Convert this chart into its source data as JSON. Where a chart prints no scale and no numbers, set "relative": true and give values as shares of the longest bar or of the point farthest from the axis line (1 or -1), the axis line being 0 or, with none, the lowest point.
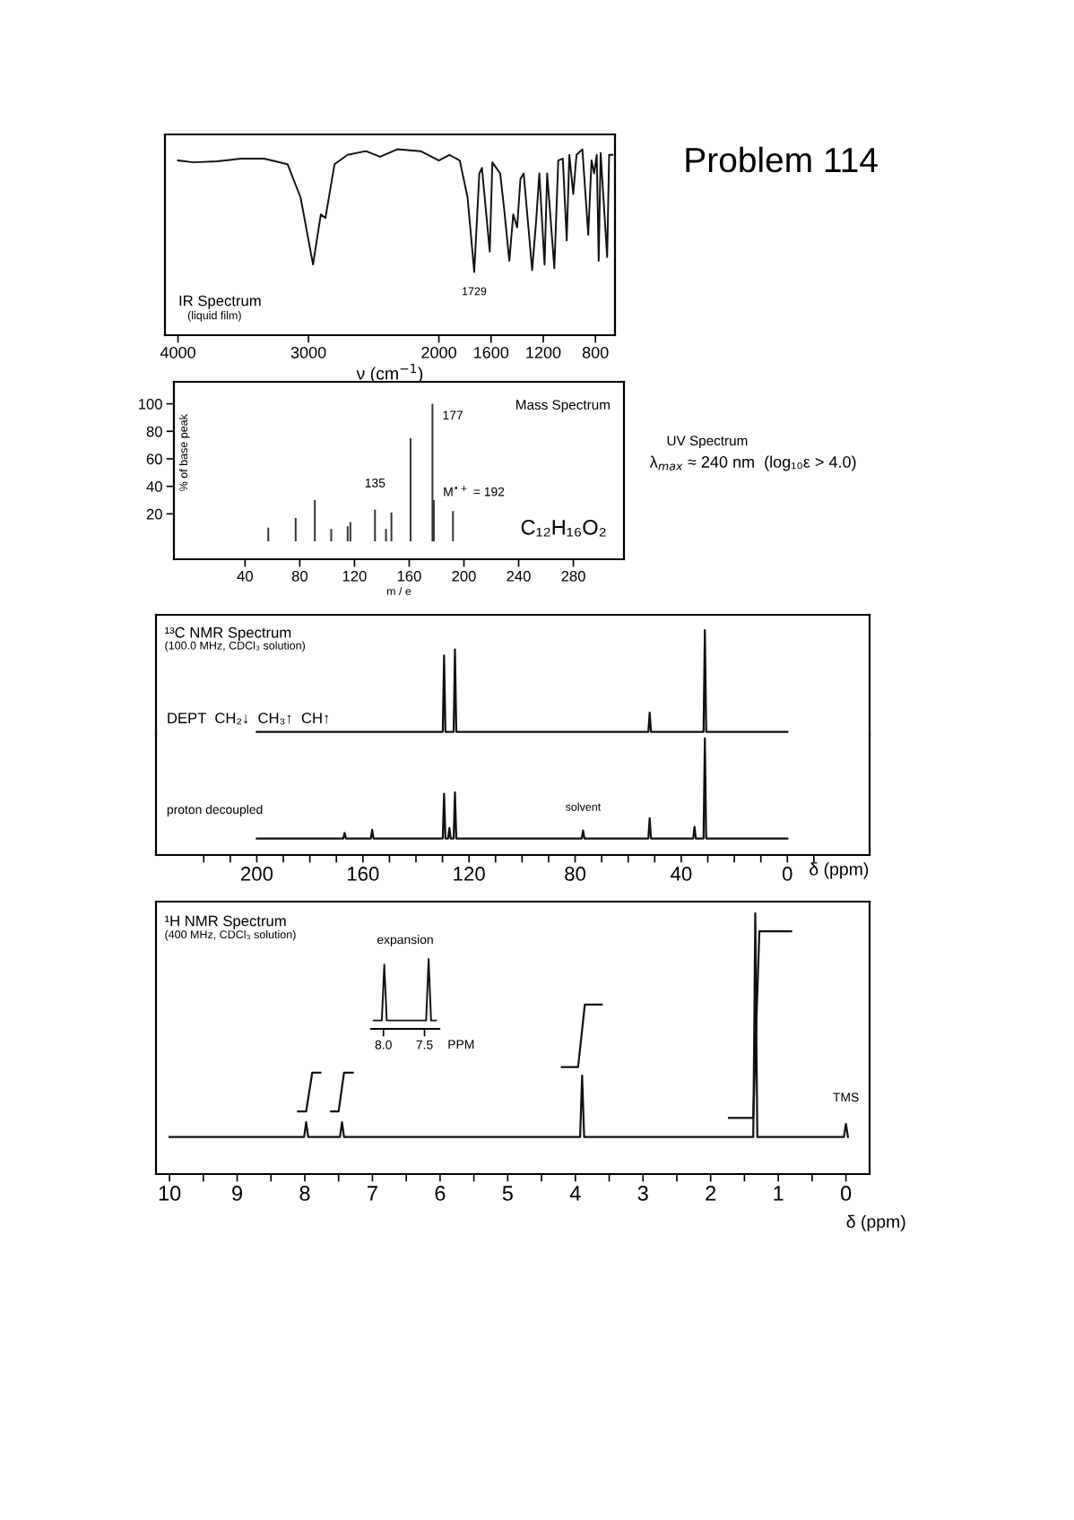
{
  "chart_data": [
    {
      "type": "line",
      "relative": true,
      "title": "IR Spectrum",
      "subtitle": "(liquid film)",
      "xlabel": "ν (cm$^{−1}$)",
      "xlim": [
        4100,
        650
      ],
      "xticks": [
        4000,
        3000,
        2000,
        1600,
        1200,
        800
      ],
      "color": "#111111",
      "x": [
        4000,
        3880,
        3700,
        3520,
        3340,
        3160,
        3060,
        2965,
        2905,
        2870,
        2800,
        2700,
        2560,
        2450,
        2320,
        2140,
        2000,
        1920,
        1840,
        1780,
        1729,
        1690,
        1670,
        1610,
        1590,
        1560,
        1530,
        1500,
        1460,
        1430,
        1400,
        1375,
        1350,
        1285,
        1255,
        1230,
        1190,
        1170,
        1115,
        1085,
        1050,
        1020,
        1000,
        970,
        945,
        900,
        855,
        830,
        810,
        790,
        775,
        760,
        710,
        695,
        670
      ],
      "values": [
        0.94,
        0.93,
        0.935,
        0.95,
        0.95,
        0.92,
        0.74,
        0.38,
        0.65,
        0.63,
        0.92,
        0.97,
        0.99,
        0.96,
        1.0,
        0.99,
        0.94,
        0.97,
        0.94,
        0.74,
        0.34,
        0.87,
        0.9,
        0.45,
        0.93,
        0.9,
        0.87,
        0.68,
        0.4,
        0.65,
        0.58,
        0.84,
        0.87,
        0.35,
        0.61,
        0.87,
        0.38,
        0.87,
        0.36,
        0.94,
        0.95,
        0.51,
        0.97,
        0.76,
        0.97,
        1.0,
        0.54,
        0.94,
        0.87,
        0.97,
        0.4,
        0.98,
        0.42,
        0.97,
        0.97
      ],
      "annotations": [
        {
          "text": "1729",
          "x": 1729,
          "y": 0.34
        }
      ]
    },
    {
      "type": "other",
      "title": "Problem 114",
      "annotations": [
        "UV Spectrum",
        "λ$_{max}$ ≈ 240 nm  (log₁₀ε > 4.0)"
      ]
    },
    {
      "type": "bar",
      "title": "Mass Spectrum",
      "xlabel": "m / e",
      "ylabel": "% of base peak",
      "xlim": [
        -12,
        317
      ],
      "ylim": [
        -13,
        116
      ],
      "xticks": [
        40,
        80,
        120,
        160,
        200,
        240,
        280
      ],
      "yticks": [
        20,
        40,
        60,
        80,
        100
      ],
      "color": "#333333",
      "x": [
        57,
        77,
        91,
        103,
        115,
        117,
        135,
        143,
        147,
        161,
        177,
        178,
        192
      ],
      "values": [
        10,
        17,
        30,
        9,
        11,
        14,
        23,
        9,
        21,
        75,
        100,
        30,
        22
      ],
      "annotations": [
        {
          "text": "177",
          "x": 177,
          "y": 100
        },
        {
          "text": "135",
          "x": 135,
          "y": 23
        },
        {
          "text": "M$^{•+}$ = 192",
          "x": 192,
          "y": 22
        },
        "C₁₂H₁₆O₂"
      ]
    },
    {
      "type": "line",
      "relative": true,
      "title": "¹³C NMR Spectrum",
      "subtitle": "(100.0 MHz, CDCl₃ solution)",
      "xlim": [
        238,
        -31
      ],
      "color": "#111111",
      "x": [
        200,
        129.9,
        129.4,
        128.9,
        125.8,
        125.3,
        124.8,
        52.4,
        51.9,
        51.4,
        31.6,
        31.1,
        30.6,
        0
      ],
      "values": [
        0,
        0,
        0.75,
        0,
        0,
        0.81,
        0,
        0,
        0.19,
        0,
        0,
        1.0,
        0,
        0
      ],
      "annotations": [
        "DEPT  CH₂↓  CH₃↑  CH↑"
      ]
    },
    {
      "type": "line",
      "relative": true,
      "xlabel": "δ (ppm)",
      "xlim": [
        238,
        -31
      ],
      "color": "#111111",
      "xticks": [
        {
          "value": 220,
          "label": null
        },
        {
          "value": 210,
          "label": null
        },
        200,
        {
          "value": 190,
          "label": null
        },
        {
          "value": 180,
          "label": null
        },
        {
          "value": 170,
          "label": null
        },
        160,
        {
          "value": 150,
          "label": null
        },
        {
          "value": 140,
          "label": null
        },
        {
          "value": 130,
          "label": null
        },
        120,
        {
          "value": 110,
          "label": null
        },
        {
          "value": 100,
          "label": null
        },
        {
          "value": 90,
          "label": null
        },
        80,
        {
          "value": 70,
          "label": null
        },
        {
          "value": 60,
          "label": null
        },
        {
          "value": 50,
          "label": null
        },
        40,
        {
          "value": 30,
          "label": null
        },
        {
          "value": 20,
          "label": null
        },
        {
          "value": 10,
          "label": null
        },
        0,
        {
          "value": -10,
          "label": null
        }
      ],
      "x": [
        200,
        167.4,
        166.9,
        166.4,
        157,
        156.5,
        156,
        129.9,
        129.4,
        128.9,
        127.9,
        127.4,
        126.9,
        125.8,
        125.3,
        124.8,
        77.5,
        77,
        76.5,
        52.4,
        51.9,
        51.4,
        35.5,
        35,
        34.5,
        31.6,
        31.1,
        30.6,
        0
      ],
      "values": [
        0.142,
        0.142,
        0.19,
        0.142,
        0.142,
        0.216,
        0.142,
        0.142,
        0.526,
        0.142,
        0.142,
        0.232,
        0.142,
        0.142,
        0.537,
        0.142,
        0.142,
        0.21,
        0.142,
        0.142,
        0.316,
        0.142,
        0.142,
        0.242,
        0.142,
        0.142,
        1.0,
        0.142,
        0.142
      ],
      "annotations": [
        "proton decoupled",
        {
          "text": "solvent",
          "x": 77,
          "y": 0.21
        }
      ]
    },
    {
      "type": "line",
      "relative": true,
      "title": "¹H NMR Spectrum",
      "subtitle": "(400 MHz, CDCl₃ solution)",
      "xlabel": "δ (ppm)",
      "xlim": [
        10.2,
        -0.35
      ],
      "xticks": [
        10,
        {
          "value": 9.5,
          "label": null
        },
        9,
        {
          "value": 8.5,
          "label": null
        },
        8,
        {
          "value": 7.5,
          "label": null
        },
        7,
        {
          "value": 6.5,
          "label": null
        },
        6,
        {
          "value": 5.5,
          "label": null
        },
        5,
        {
          "value": 4.5,
          "label": null
        },
        4,
        {
          "value": 3.5,
          "label": null
        },
        3,
        {
          "value": 2.5,
          "label": null
        },
        2,
        {
          "value": 1.5,
          "label": null
        },
        1,
        {
          "value": 0.5,
          "label": null
        },
        0
      ],
      "series": [
        {
          "color": "#111111",
          "x": [
            10,
            8.01,
            7.98,
            7.95,
            7.48,
            7.45,
            7.42,
            3.93,
            3.9,
            3.87,
            1.37,
            1.34,
            1.31,
            0.03,
            0,
            -0.03
          ],
          "values": [
            0.142,
            0.142,
            0.199,
            0.142,
            0.142,
            0.199,
            0.142,
            0.142,
            0.378,
            0.142,
            0.142,
            1.0,
            0.142,
            0.142,
            0.192,
            0.142
          ]
        },
        {
          "color": "#111111",
          "x": [
            8.1,
            7.98,
            7.89,
            7.77
          ],
          "values": [
            0.24,
            0.24,
            0.389,
            0.389
          ]
        },
        {
          "color": "#111111",
          "x": [
            7.61,
            7.5,
            7.42,
            7.29
          ],
          "values": [
            0.24,
            0.24,
            0.389,
            0.389
          ]
        },
        {
          "color": "#111111",
          "x": [
            4.2,
            3.96,
            3.86,
            3.61
          ],
          "values": [
            0.41,
            0.41,
            0.65,
            0.65
          ]
        },
        {
          "color": "#111111",
          "x": [
            1.73,
            1.37,
            1.28,
            0.81
          ],
          "values": [
            0.215,
            0.215,
            0.931,
            0.931
          ]
        }
      ],
      "annotations": [
        {
          "text": "TMS",
          "x": 0,
          "y": 0.192
        }
      ]
    },
    {
      "type": "line",
      "relative": true,
      "title": "expansion",
      "xlabel": "PPM",
      "xlim": [
        8.15,
        7.32
      ],
      "xticks": [
        {
          "value": 8,
          "label": "8.0"
        },
        7.5
      ],
      "color": "#111111",
      "x": [
        8.12,
        8.02,
        7.99,
        7.96,
        7.48,
        7.45,
        7.42,
        7.36
      ],
      "values": [
        0.12,
        0.12,
        0.92,
        0.12,
        0.12,
        1.0,
        0.12,
        0.12
      ]
    }
  ]
}
